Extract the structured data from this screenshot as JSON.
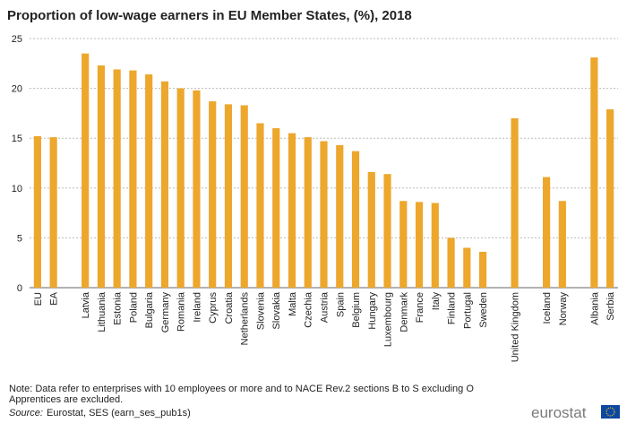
{
  "chart_data": {
    "type": "bar",
    "title": "Proportion of low-wage earners  in EU Member States, (%),   2018",
    "categories": [
      "EU",
      "EA",
      null,
      "Latvia",
      "Lithuania",
      "Estonia",
      "Poland",
      "Bulgaria",
      "Germany",
      "Romania",
      "Ireland",
      "Cyprus",
      "Croatia",
      "Netherlands",
      "Slovenia",
      "Slovakia",
      "Malta",
      "Czechia",
      "Austria",
      "Spain",
      "Belgium",
      "Hungary",
      "Luxembourg",
      "Denmark",
      "France",
      "Italy",
      "Finland",
      "Portugal",
      "Sweden",
      null,
      "United Kingdom",
      null,
      "Iceland",
      "Norway",
      null,
      "Albania",
      "Serbia"
    ],
    "values": [
      15.2,
      15.1,
      null,
      23.5,
      22.3,
      21.9,
      21.8,
      21.4,
      20.7,
      20.0,
      19.8,
      18.7,
      18.4,
      18.3,
      16.5,
      16.0,
      15.5,
      15.1,
      14.7,
      14.3,
      13.7,
      11.6,
      11.4,
      8.7,
      8.6,
      8.5,
      5.0,
      4.0,
      3.6,
      null,
      17.0,
      null,
      11.1,
      8.7,
      null,
      23.1,
      17.9
    ],
    "color": "#eca72c",
    "ylim": [
      0,
      25
    ],
    "yticks": [
      0,
      5,
      10,
      15,
      20,
      25
    ],
    "grid": true,
    "note": [
      "Note: Data refer to enterprises with 10 employees or more and to NACE Rev.2 sections B to S excluding  O",
      "Apprentices are excluded."
    ],
    "source_label": "Source:",
    "source": "Eurostat, SES (earn_ses_pub1s)",
    "logo": "eurostat"
  }
}
